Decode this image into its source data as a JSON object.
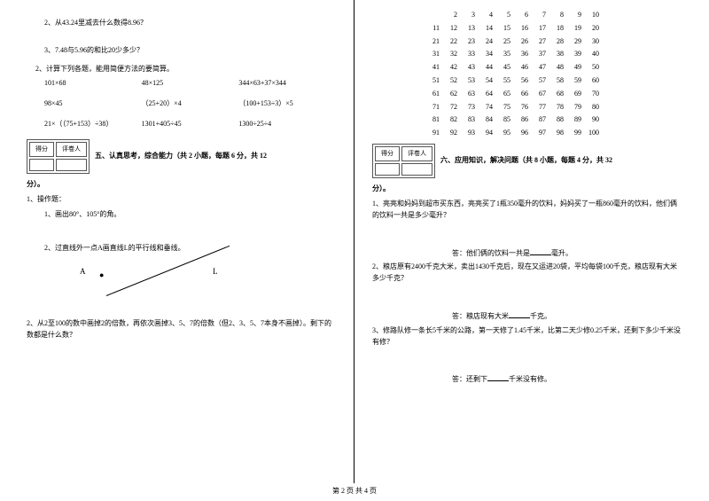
{
  "left": {
    "q1_2": "2、从43.24里减去什么数得8.96？",
    "q1_3": "3、7.48与5.96的和比20少多少？",
    "q2_head": "2、计算下列各题，能用简便方法的要简算。",
    "row1": {
      "a": "101×68",
      "b": "48×125",
      "c": "344×63+37×344"
    },
    "row2": {
      "a": "98×45",
      "b": "（25+20）×4",
      "c": "（100+153÷3）×5"
    },
    "row3": {
      "a": "21×（（75+153）÷38）",
      "b": "1301+405÷45",
      "c": "1300÷25÷4"
    },
    "score": {
      "h1": "得分",
      "h2": "评卷人"
    },
    "section5": "五、认真思考，综合能力（共 2 小题，每题 6 分，共 12",
    "section5_tail": "分）。",
    "op_head": "1、操作题：",
    "op1": "1、画出80°、105°的角。",
    "op2": "2、过直线外一点A画直线L的平行线和垂线。",
    "diag": {
      "a": "A",
      "dot": "●",
      "l": "L"
    },
    "q2_2": "2、从2至100的数中画掉2的倍数，再依次画掉3、5、7的倍数（但2、3、5、7本身不画掉）。剩下的数都是什么数？"
  },
  "right": {
    "grid": [
      [
        2,
        3,
        4,
        5,
        6,
        7,
        8,
        9,
        10
      ],
      [
        11,
        12,
        13,
        14,
        15,
        16,
        17,
        18,
        19,
        20
      ],
      [
        21,
        22,
        23,
        24,
        25,
        26,
        27,
        28,
        29,
        30
      ],
      [
        31,
        32,
        33,
        34,
        35,
        36,
        37,
        38,
        39,
        40
      ],
      [
        41,
        42,
        43,
        44,
        45,
        46,
        47,
        48,
        49,
        50
      ],
      [
        51,
        52,
        53,
        54,
        55,
        56,
        57,
        58,
        59,
        60
      ],
      [
        61,
        62,
        63,
        64,
        65,
        66,
        67,
        68,
        69,
        70
      ],
      [
        71,
        72,
        73,
        74,
        75,
        76,
        77,
        78,
        79,
        80
      ],
      [
        81,
        82,
        83,
        84,
        85,
        86,
        87,
        88,
        89,
        90
      ],
      [
        91,
        92,
        93,
        94,
        95,
        96,
        97,
        98,
        99,
        100
      ]
    ],
    "score": {
      "h1": "得分",
      "h2": "评卷人"
    },
    "section6": "六、应用知识，解决问题（共 8 小题，每题 4 分，共 32",
    "section6_tail": "分）。",
    "p1": "1、亮亮和妈妈到超市买东西，亮亮买了1瓶350毫升的饮料，妈妈买了一瓶860毫升的饮料，他们俩的饮料一共是多少毫升？",
    "a1_pre": "答：他们俩的饮料一共是",
    "a1_post": "毫升。",
    "p2": "2、粮店原有2400千克大米，卖出1430千克后，现在又运进20袋，平均每袋100千克，粮店现有大米多少千克？",
    "a2_pre": "答：粮店现有大米",
    "a2_post": "千克。",
    "p3": "3、修路队修一条长5千米的公路，第一天修了1.45千米，比第二天少修0.25千米，还剩下多少千米没有修？",
    "a3_pre": "答：还剩下",
    "a3_post": "千米没有修。"
  },
  "footer": "第 2 页 共 4 页"
}
